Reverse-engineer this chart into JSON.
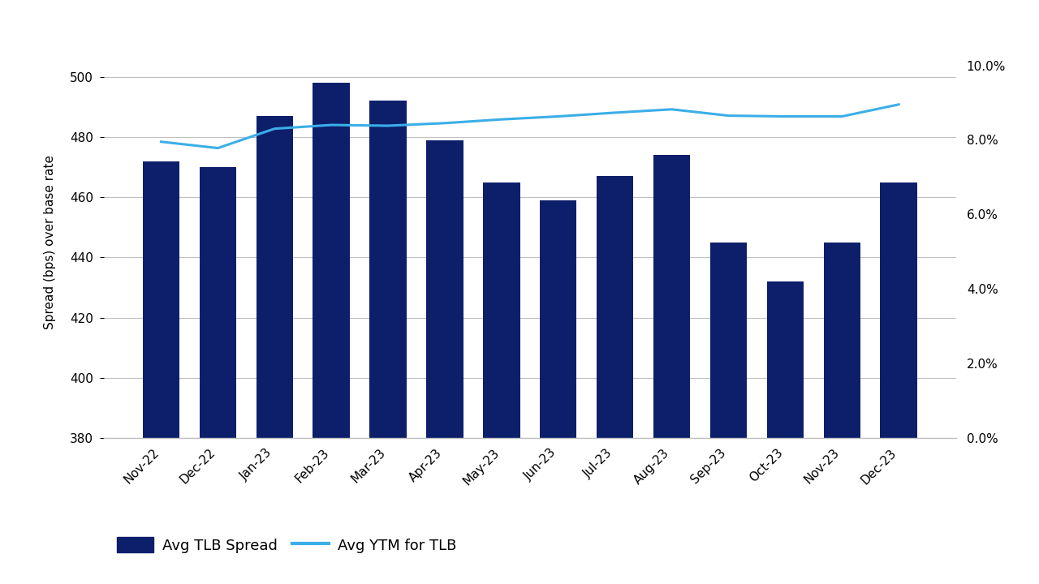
{
  "categories": [
    "Nov-22",
    "Dec-22",
    "Jan-23",
    "Feb-23",
    "Mar-23",
    "Apr-23",
    "May-23",
    "Jun-23",
    "Jul-23",
    "Aug-23",
    "Sep-23",
    "Oct-23",
    "Nov-23",
    "Dec-23"
  ],
  "bar_values": [
    472,
    470,
    487,
    498,
    492,
    479,
    465,
    459,
    467,
    474,
    445,
    432,
    445,
    465
  ],
  "line_values": [
    0.0795,
    0.0778,
    0.083,
    0.084,
    0.0838,
    0.0845,
    0.0855,
    0.0863,
    0.0873,
    0.0882,
    0.0865,
    0.0863,
    0.0863,
    0.0895
  ],
  "bar_color": "#0D1F6B",
  "line_color": "#3BAEE8",
  "ylabel_left": "Spread (bps) over base rate",
  "ylim_left": [
    380,
    510
  ],
  "yticks_left": [
    380,
    400,
    420,
    440,
    460,
    480,
    500
  ],
  "ylim_right": [
    0.0,
    0.105
  ],
  "yticks_right": [
    0.0,
    0.02,
    0.04,
    0.06,
    0.08,
    0.1
  ],
  "ytick_labels_right": [
    "0.0%",
    "2.0%",
    "4.0%",
    "6.0%",
    "8.0%",
    "10.0%"
  ],
  "legend_bar_label": "Avg TLB Spread",
  "legend_line_label": "Avg YTM for TLB",
  "background_color": "#ffffff",
  "grid_color": "#c0c0c0",
  "bar_width": 0.65
}
